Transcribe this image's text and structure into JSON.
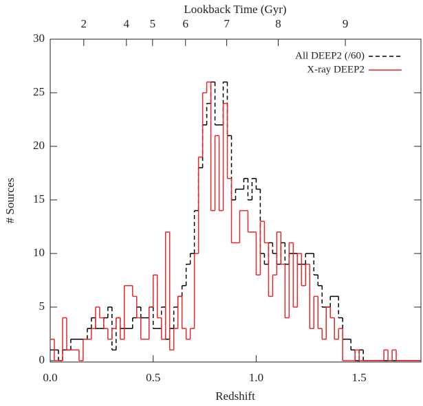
{
  "chart_data": {
    "type": "histogram",
    "xlabel": "Redshift",
    "ylabel": "# Sources",
    "x2label": "Lookback Time (Gyr)",
    "bins": [
      0,
      0.02,
      0.04,
      0.06,
      0.08,
      0.1,
      0.12,
      0.14,
      0.16,
      0.18,
      0.2,
      0.22,
      0.24,
      0.26,
      0.28,
      0.3,
      0.32,
      0.34,
      0.36,
      0.38,
      0.4,
      0.42,
      0.44,
      0.46,
      0.48,
      0.5,
      0.52,
      0.54,
      0.56,
      0.58,
      0.6,
      0.62,
      0.64,
      0.66,
      0.68,
      0.7,
      0.72,
      0.74,
      0.76,
      0.78,
      0.8,
      0.82,
      0.84,
      0.86,
      0.88,
      0.9,
      0.92,
      0.94,
      0.96,
      0.98,
      1,
      1.02,
      1.04,
      1.06,
      1.08,
      1.1,
      1.12,
      1.14,
      1.16,
      1.18,
      1.2,
      1.22,
      1.24,
      1.26,
      1.28,
      1.3,
      1.32,
      1.34,
      1.36,
      1.38,
      1.4,
      1.42,
      1.44,
      1.46,
      1.48,
      1.5,
      1.52,
      1.54,
      1.56,
      1.58,
      1.6,
      1.62,
      1.64,
      1.66,
      1.68,
      1.7,
      1.72,
      1.74,
      1.76,
      1.78,
      1.8
    ],
    "series": [
      {
        "name": "All DEEP2 (/60)",
        "color": "#000000",
        "dashed": true,
        "values": [
          1,
          1,
          0,
          1,
          1,
          2,
          2,
          2,
          2,
          3,
          4,
          3,
          3,
          4,
          5,
          1,
          4,
          3,
          3,
          3,
          4,
          5,
          4,
          4,
          5,
          3,
          3,
          5,
          2,
          3,
          5,
          6,
          7,
          9,
          10,
          14,
          18,
          22,
          24,
          26,
          22,
          22,
          26,
          21,
          15,
          16,
          16,
          17,
          15,
          17,
          16,
          10,
          9,
          11,
          10,
          9,
          11,
          9,
          10,
          10,
          9,
          9,
          10,
          10,
          8,
          7,
          5,
          5,
          6,
          6,
          4,
          2,
          2,
          1,
          0,
          1,
          0,
          0,
          0,
          0,
          0,
          0,
          0,
          0,
          0,
          0,
          0,
          0,
          0,
          0
        ]
      },
      {
        "name": "X-ray DEEP2",
        "color": "#e8262a",
        "dashed": false,
        "values": [
          2,
          0,
          0,
          4,
          1,
          1,
          1,
          0,
          2,
          2,
          3,
          5,
          4,
          3,
          2,
          3,
          4,
          2,
          7,
          7,
          6,
          4,
          2,
          2,
          5,
          8,
          4,
          2,
          12,
          1,
          3,
          6,
          3,
          2,
          3,
          10,
          19,
          25,
          26,
          14,
          21,
          14,
          24,
          17,
          11,
          11,
          14,
          14,
          12,
          12,
          8,
          13,
          11,
          6,
          8,
          12,
          9,
          4,
          11,
          5,
          10,
          7,
          9,
          3,
          6,
          3,
          2,
          5,
          4,
          2,
          3,
          0,
          0,
          0,
          1,
          0,
          0,
          0,
          0,
          0,
          0,
          1,
          0,
          1,
          0,
          0,
          0,
          0,
          0,
          0
        ]
      }
    ],
    "xlim": [
      0,
      1.8
    ],
    "ylim": [
      0,
      30
    ],
    "xticks": [
      {
        "value": 0,
        "label": "0.0"
      },
      0.5,
      {
        "value": 1,
        "label": "1.0"
      },
      1.5
    ],
    "yticks": [
      0,
      5,
      10,
      15,
      20,
      25,
      30
    ],
    "x2ticks": [
      {
        "value": 0.163,
        "label": "2"
      },
      {
        "value": 0.37,
        "label": "4"
      },
      {
        "value": 0.497,
        "label": "5"
      },
      {
        "value": 0.657,
        "label": "6"
      },
      {
        "value": 0.857,
        "label": "7"
      },
      {
        "value": 1.107,
        "label": "8"
      },
      {
        "value": 1.433,
        "label": "9"
      }
    ],
    "legend": "upper right"
  }
}
